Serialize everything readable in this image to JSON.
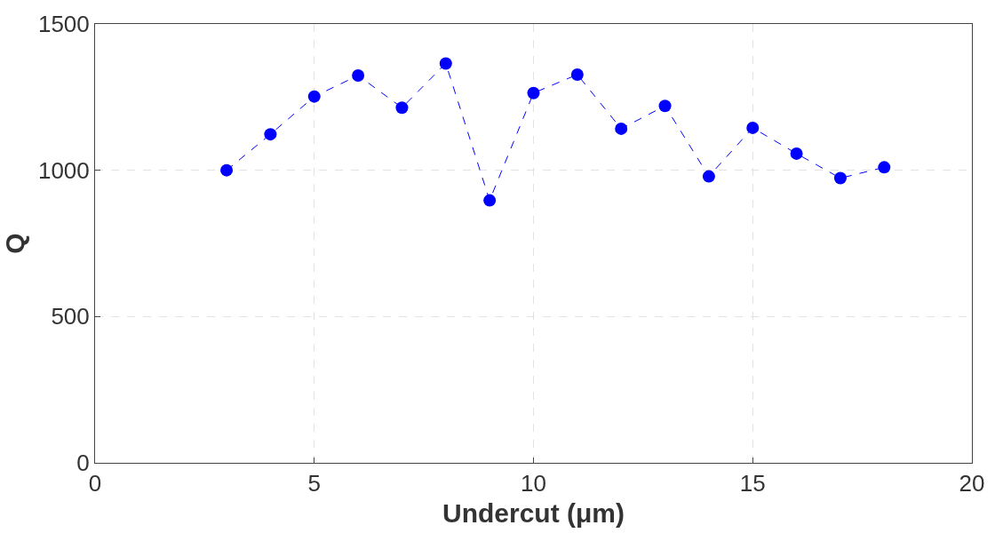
{
  "chart_data": {
    "type": "line",
    "xlabel": "Undercut (μm)",
    "ylabel": "Q",
    "x": [
      3,
      4,
      5,
      6,
      7,
      8,
      9,
      10,
      11,
      12,
      13,
      14,
      15,
      16,
      17,
      18
    ],
    "series": [
      {
        "color": "#0000ff",
        "values": [
          1000,
          1123,
          1252,
          1324,
          1214,
          1365,
          897,
          1264,
          1327,
          1142,
          1220,
          979,
          1145,
          1057,
          973,
          1010
        ]
      }
    ],
    "xlim": [
      0,
      20
    ],
    "xticks": [
      0,
      5,
      10,
      15,
      20
    ],
    "ylim": [
      0,
      1500
    ],
    "yticks": [
      0,
      500,
      1000,
      1500
    ],
    "grid": true,
    "marker": "circle",
    "line_style": "dashed"
  }
}
